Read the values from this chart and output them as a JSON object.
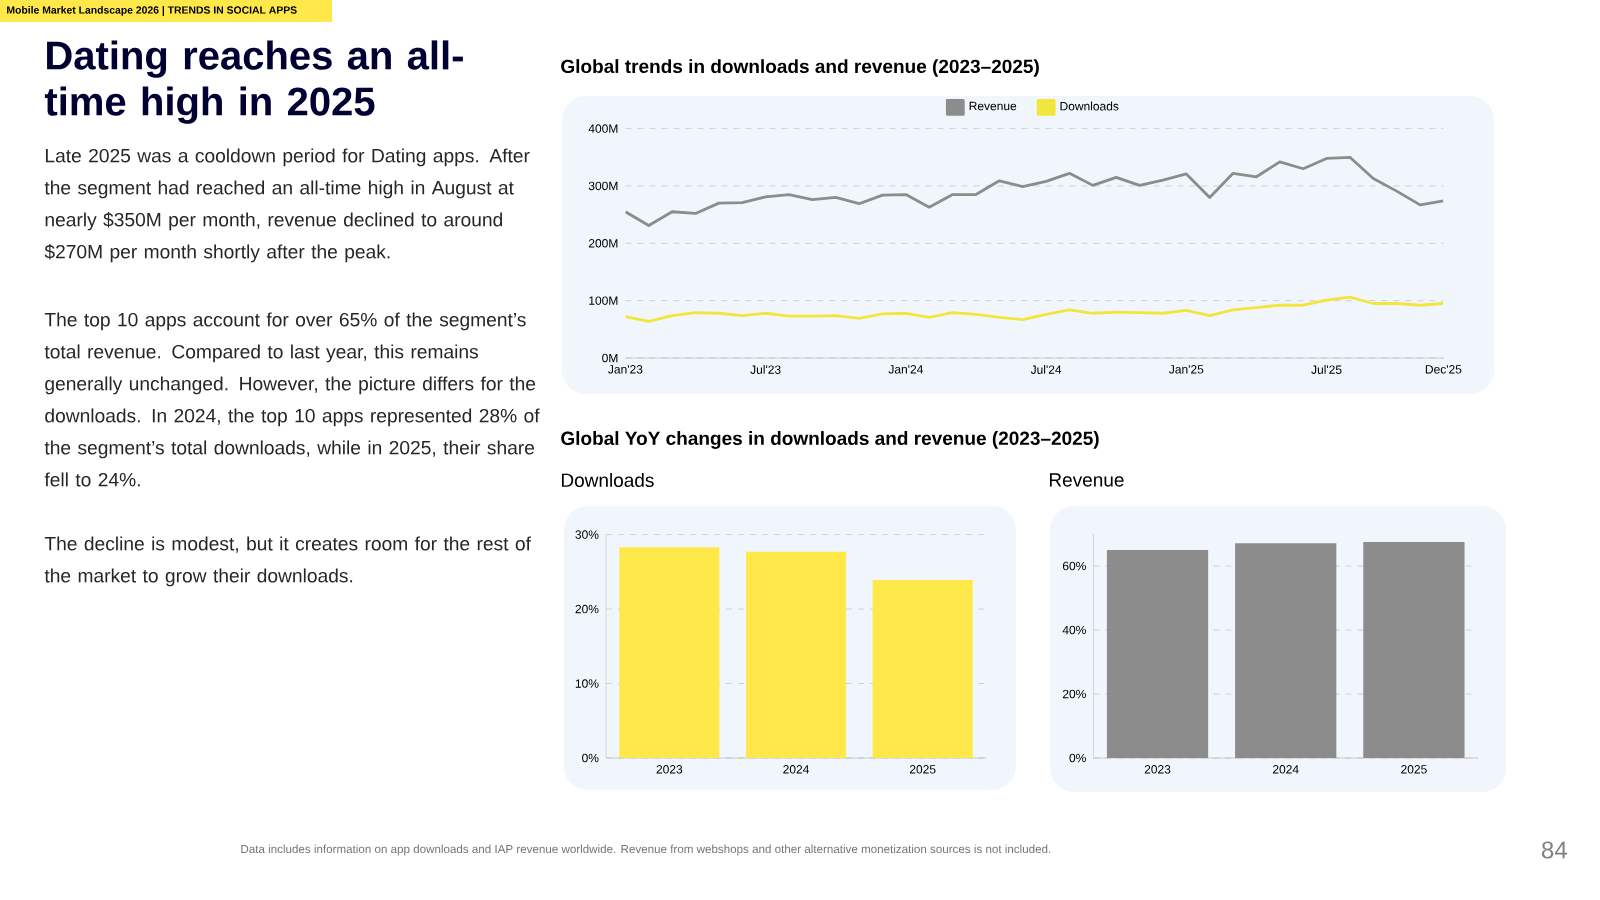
{
  "chart_data": [
    {
      "type": "other",
      "title": "Dating reaches an all-time high in 2025",
      "annotations": [
        "Mobile Market Landscape 2026 | TRENDS IN SOCIAL APPS",
        "Late 2025 was a cooldown period for Dating apps. After the segment had reached an all-time high in August at nearly $350M per month, revenue declined to around $270M per month shortly after the peak.",
        "The top 10 apps account for over 65% of the segment’s total revenue. Compared to last year, this remains generally unchanged. However, the picture differs for the downloads. In 2024, the top 10 apps represented 28% of the segment’s total downloads, while in 2025, their share fell to 24%.",
        "The decline is modest, but it creates room for the rest of the market to grow their downloads.",
        "Data includes information on app downloads and IAP revenue worldwide. Revenue from webshops and other alternative monetization sources is not included.",
        "84"
      ]
    },
    {
      "type": "line",
      "title": "Global trends in downloads and revenue (2023–2025)",
      "x": [
        "2023-01",
        "2023-02",
        "2023-03",
        "2023-04",
        "2023-05",
        "2023-06",
        "2023-07",
        "2023-08",
        "2023-09",
        "2023-10",
        "2023-11",
        "2023-12",
        "2024-01",
        "2024-02",
        "2024-03",
        "2024-04",
        "2024-05",
        "2024-06",
        "2024-07",
        "2024-08",
        "2024-09",
        "2024-10",
        "2024-11",
        "2024-12",
        "2025-01",
        "2025-02",
        "2025-03",
        "2025-04",
        "2025-05",
        "2025-06",
        "2025-07",
        "2025-08",
        "2025-09",
        "2025-10",
        "2025-11",
        "2025-12"
      ],
      "xlim": [
        "2023-01",
        "2025-12"
      ],
      "xticks": [
        {
          "value": "2023-01",
          "label": "Jan'23"
        },
        {
          "value": "2023-07",
          "label": "Jul'23"
        },
        {
          "value": "2024-01",
          "label": "Jan'24"
        },
        {
          "value": "2024-07",
          "label": "Jul'24"
        },
        {
          "value": "2025-01",
          "label": "Jan'25"
        },
        {
          "value": "2025-07",
          "label": "Jul'25"
        },
        {
          "value": "2025-12",
          "label": "Dec'25"
        }
      ],
      "ylim": [
        0,
        400
      ],
      "yticks": [
        {
          "value": 0,
          "label": "0M"
        },
        {
          "value": 100,
          "label": "100M"
        },
        {
          "value": 200,
          "label": "200M"
        },
        {
          "value": 300,
          "label": "300M"
        },
        {
          "value": 400,
          "label": "400M"
        }
      ],
      "grid": "y",
      "legend": "top",
      "series": [
        {
          "name": "Revenue",
          "color": "#8c8c8c",
          "values": [
            255,
            231,
            255,
            252,
            270,
            271,
            281,
            285,
            276,
            280,
            269,
            284,
            285,
            263,
            285,
            285,
            309,
            299,
            308,
            322,
            301,
            315,
            301,
            310,
            321,
            280,
            322,
            316,
            342,
            330,
            348,
            350,
            313,
            291,
            267,
            274
          ]
        },
        {
          "name": "Downloads",
          "color": "#f2e63c",
          "values": [
            72,
            64,
            74,
            79,
            78,
            74,
            78,
            73,
            73,
            74,
            69,
            77,
            78,
            71,
            79,
            76,
            71,
            67,
            76,
            84,
            78,
            80,
            79,
            78,
            83,
            74,
            84,
            88,
            92,
            92,
            101,
            106,
            95,
            95,
            92,
            95
          ]
        }
      ]
    },
    {
      "type": "bar",
      "title": "Downloads",
      "annotations": [
        "Global YoY changes in downloads and revenue (2023–2025)"
      ],
      "categories": [
        "2023",
        "2024",
        "2025"
      ],
      "values": [
        28.3,
        27.7,
        23.9
      ],
      "color": "#ffe94a",
      "ylim": [
        0,
        30
      ],
      "yticks": [
        {
          "value": 0,
          "label": "0%"
        },
        {
          "value": 10,
          "label": "10%"
        },
        {
          "value": 20,
          "label": "20%"
        },
        {
          "value": 30,
          "label": "30%"
        }
      ],
      "grid": "y"
    },
    {
      "type": "bar",
      "title": "Revenue",
      "categories": [
        "2023",
        "2024",
        "2025"
      ],
      "values": [
        65,
        67.1,
        67.5
      ],
      "color": "#8c8c8c",
      "ylim": [
        0,
        70
      ],
      "yticks": [
        {
          "value": 0,
          "label": "0%"
        },
        {
          "value": 20,
          "label": "20%"
        },
        {
          "value": 40,
          "label": "40%"
        },
        {
          "value": 60,
          "label": "60%"
        }
      ],
      "grid": "y"
    }
  ]
}
